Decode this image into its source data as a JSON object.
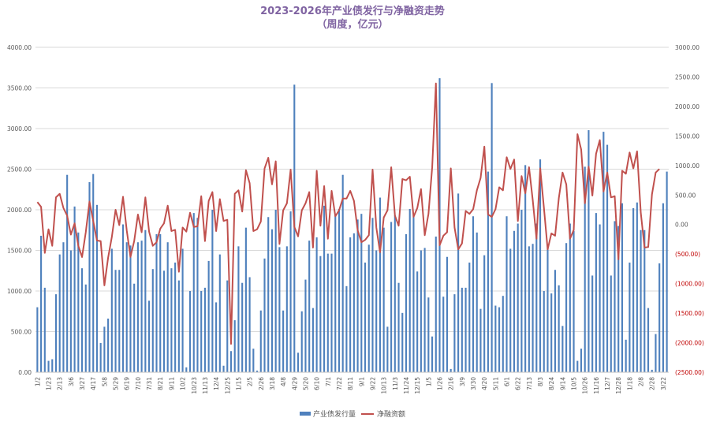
{
  "chart_data": {
    "type": "bar+line",
    "title": "2023-2026年产业债发行与净融资走势",
    "subtitle": "（周度，亿元）",
    "y_left": {
      "min": 0,
      "max": 4000,
      "step": 500,
      "tick_labels": [
        "0.00",
        "500.00",
        "1000.00",
        "1500.00",
        "2000.00",
        "2500.00",
        "3000.00",
        "3500.00",
        "4000.00"
      ]
    },
    "y_right": {
      "min": -2500,
      "max": 3000,
      "step": 500,
      "tick_labels": [
        "(2500.00)",
        "(2000.00)",
        "(1500.00)",
        "(1000.00)",
        "(500.00)",
        "0.00",
        "500.00",
        "1000.00",
        "1500.00",
        "2000.00",
        "2500.00",
        "3000.00"
      ]
    },
    "x_tick_labels": [
      "1/2",
      "1/23",
      "2/13",
      "3/6",
      "3/27",
      "4/17",
      "5/8",
      "5/29",
      "6/19",
      "7/10",
      "7/31",
      "8/21",
      "9/11",
      "10/2",
      "10/23",
      "11/13",
      "12/4",
      "12/25",
      "1/15",
      "2/5",
      "2/26",
      "3/18",
      "4/8",
      "4/29",
      "5/20",
      "6/10",
      "7/1",
      "7/22",
      "8/11",
      "9/1",
      "9/22",
      "10/13",
      "11/3",
      "11/24",
      "12/15",
      "1/5",
      "1/26",
      "2/16",
      "3/9",
      "3/30",
      "4/20",
      "5/11",
      "6/1",
      "6/22",
      "7/13",
      "8/3",
      "8/24",
      "9/14",
      "10/5",
      "10/26",
      "11/16",
      "12/7",
      "12/28",
      "1/18",
      "2/8",
      "2/28",
      "3/22"
    ],
    "x_tick_index": [
      0,
      3,
      6,
      9,
      12,
      15,
      18,
      21,
      24,
      27,
      30,
      33,
      36,
      39,
      42,
      45,
      48,
      51,
      54,
      57,
      60,
      63,
      66,
      69,
      72,
      75,
      78,
      81,
      84,
      87,
      90,
      93,
      96,
      99,
      102,
      105,
      108,
      111,
      114,
      117,
      120,
      123,
      126,
      129,
      132,
      135,
      138,
      141,
      144,
      147,
      150,
      153,
      156,
      159,
      162,
      165,
      168
    ],
    "series": [
      {
        "name": "产业债发行量",
        "type": "bar",
        "axis": "left",
        "values": [
          800,
          1680,
          1040,
          140,
          160,
          960,
          1450,
          1600,
          2430,
          1500,
          2040,
          1720,
          1280,
          1080,
          2340,
          2440,
          2060,
          360,
          560,
          660,
          1520,
          1260,
          1260,
          1820,
          1600,
          1560,
          1090,
          1600,
          1620,
          1750,
          880,
          1270,
          1700,
          1700,
          1250,
          1600,
          1280,
          1350,
          1130,
          1520,
          60,
          1000,
          1960,
          1900,
          1000,
          1040,
          1370,
          2000,
          860,
          1450,
          80,
          1130,
          260,
          640,
          1550,
          1100,
          1780,
          1170,
          290,
          20,
          760,
          1400,
          1910,
          1760,
          2000,
          1540,
          760,
          1550,
          1980,
          3540,
          240,
          750,
          1140,
          1620,
          790,
          1660,
          1430,
          2050,
          1460,
          1460,
          1950,
          2010,
          2430,
          1060,
          1660,
          1710,
          1880,
          1950,
          1350,
          1570,
          1900,
          1500,
          2150,
          1780,
          560,
          1850,
          1930,
          1100,
          730,
          1700,
          2010,
          1940,
          1240,
          1500,
          1530,
          920,
          440,
          1670,
          3620,
          930,
          1420,
          40,
          960,
          2200,
          1040,
          1040,
          1350,
          1920,
          1720,
          780,
          1440,
          2470,
          3560,
          820,
          800,
          940,
          1920,
          1520,
          1740,
          1830,
          2000,
          2550,
          1550,
          1580,
          1830,
          2620,
          1000,
          1530,
          970,
          1260,
          1070,
          570,
          1590,
          1830,
          1740,
          140,
          290,
          2530,
          2980,
          1190,
          1960,
          1820,
          2960,
          2800,
          1190,
          1860,
          1800,
          2080,
          400,
          1350,
          2020,
          2090,
          1750,
          1750,
          790,
          30,
          470,
          1340,
          2080,
          2470
        ]
      },
      {
        "name": "净融资额",
        "type": "line",
        "axis": "right",
        "values": [
          380,
          300,
          -480,
          -80,
          -360,
          460,
          520,
          280,
          150,
          -170,
          20,
          -360,
          -550,
          -130,
          390,
          60,
          -270,
          -280,
          -1030,
          -560,
          -210,
          250,
          -10,
          470,
          -100,
          -550,
          -280,
          170,
          -130,
          460,
          -120,
          -360,
          -300,
          -70,
          20,
          320,
          -110,
          -90,
          -800,
          -50,
          -120,
          200,
          -40,
          -30,
          480,
          -280,
          400,
          550,
          -110,
          430,
          60,
          80,
          -2020,
          520,
          580,
          220,
          920,
          700,
          -110,
          -80,
          50,
          950,
          1130,
          680,
          1070,
          -330,
          240,
          360,
          930,
          -40,
          -200,
          240,
          360,
          550,
          -390,
          910,
          -20,
          650,
          -240,
          570,
          140,
          240,
          440,
          440,
          570,
          400,
          -100,
          -300,
          -260,
          -180,
          930,
          -50,
          -470,
          120,
          240,
          970,
          150,
          -20,
          770,
          750,
          810,
          130,
          280,
          600,
          -180,
          180,
          970,
          2390,
          -350,
          -190,
          -130,
          950,
          -50,
          -420,
          -320,
          230,
          180,
          260,
          580,
          790,
          1320,
          170,
          130,
          260,
          630,
          580,
          1140,
          940,
          1100,
          60,
          820,
          530,
          970,
          410,
          -240,
          950,
          280,
          -420,
          -150,
          -190,
          450,
          880,
          680,
          -240,
          -90,
          1530,
          1270,
          360,
          980,
          490,
          1200,
          1430,
          560,
          880,
          460,
          480,
          -590,
          910,
          860,
          1220,
          950,
          1240,
          200,
          -390,
          -380,
          510,
          880,
          940
        ]
      }
    ],
    "legend": {
      "position": "bottom-center"
    },
    "grid": "horizontal-left-axis",
    "colors": {
      "bar": "#4f81bd",
      "line": "#c0504d",
      "title": "#8064a2",
      "left_axis_text": "#595959",
      "right_axis_text": "#c00000",
      "grid": "#d9d9d9"
    }
  }
}
